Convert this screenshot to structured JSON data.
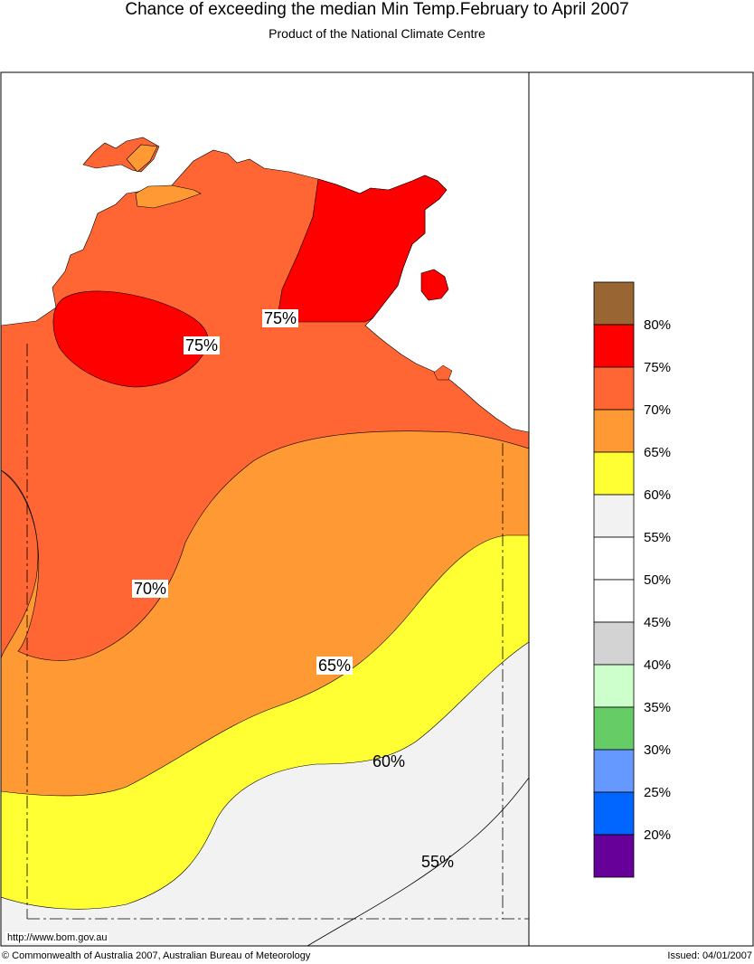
{
  "header": {
    "title": "Chance of exceeding the median Min Temp.February to April 2007",
    "subtitle": "Product of the National Climate Centre"
  },
  "map": {
    "region": "Northern Territory / Top End",
    "contour_labels": [
      "75%",
      "75%",
      "70%",
      "65%",
      "60%",
      "55%"
    ],
    "colors": {
      "c75": "#ff0000",
      "c70": "#ff6633",
      "c65": "#ff9933",
      "c60": "#ffff33",
      "c55": "#f2f2f2",
      "c50": "#ffffff"
    }
  },
  "legend": {
    "colors": [
      "#996633",
      "#ff0000",
      "#ff6633",
      "#ff9933",
      "#ffff33",
      "#f2f2f2",
      "#ffffff",
      "#ffffff",
      "#d3d3d3",
      "#ccffcc",
      "#66cc66",
      "#6699ff",
      "#0066ff",
      "#660099"
    ],
    "labels": [
      "80%",
      "75%",
      "70%",
      "65%",
      "60%",
      "55%",
      "50%",
      "45%",
      "40%",
      "35%",
      "30%",
      "25%",
      "20%"
    ]
  },
  "footer": {
    "url": "http://www.bom.gov.au",
    "copyright": "© Commonwealth of Australia 2007, Australian Bureau of Meteorology",
    "issued": "Issued: 04/01/2007"
  }
}
